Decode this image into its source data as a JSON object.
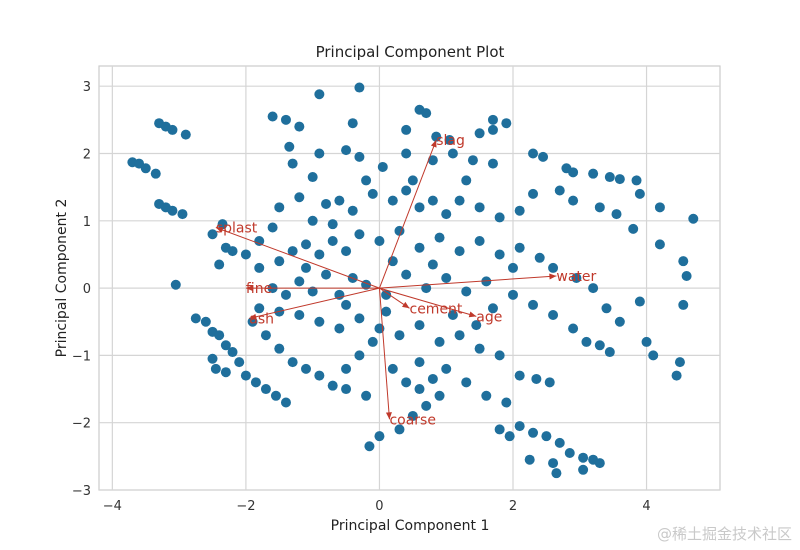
{
  "chart_data": {
    "type": "scatter",
    "title": "Principal Component Plot",
    "xlabel": "Principal Component 1",
    "ylabel": "Principal Component 2",
    "xlim": [
      -4.2,
      5.1
    ],
    "ylim": [
      -3,
      3.3
    ],
    "xticks": [
      -4,
      -2,
      0,
      2,
      4
    ],
    "xtick_labels": [
      "−4",
      "−2",
      "0",
      "2",
      "4"
    ],
    "yticks": [
      -3,
      -2,
      -1,
      0,
      1,
      2,
      3
    ],
    "ytick_labels": [
      "−3",
      "−2",
      "−1",
      "0",
      "1",
      "2",
      "3"
    ],
    "grid": true,
    "point_color": "#1f6f9c",
    "arrow_color": "#c0392b",
    "series": [
      {
        "points": [
          [
            -3.7,
            1.87
          ],
          [
            -3.6,
            1.85
          ],
          [
            -3.5,
            1.78
          ],
          [
            -3.35,
            1.7
          ],
          [
            -3.3,
            2.45
          ],
          [
            -3.2,
            2.4
          ],
          [
            -3.1,
            2.35
          ],
          [
            -2.9,
            2.28
          ],
          [
            -3.3,
            1.25
          ],
          [
            -3.2,
            1.2
          ],
          [
            -3.1,
            1.15
          ],
          [
            -2.95,
            1.1
          ],
          [
            -3.05,
            0.05
          ],
          [
            -1.35,
            2.1
          ],
          [
            -0.9,
            2.0
          ],
          [
            -0.5,
            2.05
          ],
          [
            -0.3,
            1.95
          ],
          [
            0.05,
            1.8
          ],
          [
            0.4,
            2.0
          ],
          [
            0.8,
            1.9
          ],
          [
            1.1,
            2.0
          ],
          [
            1.4,
            1.9
          ],
          [
            1.7,
            1.85
          ],
          [
            -0.9,
            2.88
          ],
          [
            -0.3,
            2.98
          ],
          [
            0.6,
            2.65
          ],
          [
            0.7,
            2.6
          ],
          [
            1.7,
            2.5
          ],
          [
            1.9,
            2.45
          ],
          [
            -1.6,
            2.55
          ],
          [
            -1.4,
            2.5
          ],
          [
            -1.2,
            2.4
          ],
          [
            -0.4,
            2.45
          ],
          [
            0.4,
            2.35
          ],
          [
            0.85,
            2.25
          ],
          [
            1.05,
            2.2
          ],
          [
            1.5,
            2.3
          ],
          [
            1.7,
            2.35
          ],
          [
            2.3,
            2.0
          ],
          [
            2.45,
            1.95
          ],
          [
            2.8,
            1.78
          ],
          [
            2.9,
            1.72
          ],
          [
            3.2,
            1.7
          ],
          [
            3.45,
            1.65
          ],
          [
            3.6,
            1.62
          ],
          [
            3.85,
            1.6
          ],
          [
            3.9,
            1.4
          ],
          [
            4.2,
            1.2
          ],
          [
            4.7,
            1.03
          ],
          [
            2.3,
            1.4
          ],
          [
            2.7,
            1.45
          ],
          [
            2.9,
            1.3
          ],
          [
            3.3,
            1.2
          ],
          [
            3.55,
            1.1
          ],
          [
            3.8,
            0.88
          ],
          [
            4.2,
            0.65
          ],
          [
            4.55,
            0.4
          ],
          [
            4.6,
            0.18
          ],
          [
            -2.5,
            0.8
          ],
          [
            -2.35,
            0.95
          ],
          [
            -2.3,
            0.6
          ],
          [
            -2.2,
            0.55
          ],
          [
            -2.4,
            0.35
          ],
          [
            -2.0,
            0.5
          ],
          [
            -1.8,
            0.7
          ],
          [
            -1.6,
            0.9
          ],
          [
            -1.5,
            1.2
          ],
          [
            -1.2,
            1.35
          ],
          [
            -1.0,
            1.0
          ],
          [
            -0.8,
            1.25
          ],
          [
            -0.6,
            1.3
          ],
          [
            -0.4,
            1.15
          ],
          [
            -0.1,
            1.4
          ],
          [
            0.2,
            1.3
          ],
          [
            0.4,
            1.45
          ],
          [
            0.6,
            1.2
          ],
          [
            0.8,
            1.3
          ],
          [
            1.0,
            1.1
          ],
          [
            1.2,
            1.3
          ],
          [
            1.5,
            1.2
          ],
          [
            1.8,
            1.05
          ],
          [
            2.1,
            1.15
          ],
          [
            -1.8,
            0.3
          ],
          [
            -1.5,
            0.4
          ],
          [
            -1.3,
            0.55
          ],
          [
            -1.1,
            0.65
          ],
          [
            -0.9,
            0.5
          ],
          [
            -0.7,
            0.7
          ],
          [
            -0.5,
            0.55
          ],
          [
            -0.3,
            0.8
          ],
          [
            0.0,
            0.7
          ],
          [
            0.3,
            0.85
          ],
          [
            0.6,
            0.6
          ],
          [
            0.9,
            0.75
          ],
          [
            1.2,
            0.55
          ],
          [
            1.5,
            0.7
          ],
          [
            1.8,
            0.5
          ],
          [
            2.1,
            0.6
          ],
          [
            2.4,
            0.45
          ],
          [
            2.6,
            0.3
          ],
          [
            2.95,
            0.15
          ],
          [
            3.2,
            0.0
          ],
          [
            3.4,
            -0.3
          ],
          [
            3.6,
            -0.5
          ],
          [
            3.9,
            -0.2
          ],
          [
            4.0,
            -0.8
          ],
          [
            4.1,
            -1.0
          ],
          [
            4.5,
            -1.1
          ],
          [
            4.45,
            -1.3
          ],
          [
            4.55,
            -0.25
          ],
          [
            -1.6,
            0.0
          ],
          [
            -1.4,
            -0.1
          ],
          [
            -1.2,
            0.1
          ],
          [
            -1.0,
            -0.05
          ],
          [
            -0.8,
            0.2
          ],
          [
            -0.6,
            -0.1
          ],
          [
            -0.4,
            0.15
          ],
          [
            -0.2,
            0.05
          ],
          [
            0.1,
            -0.1
          ],
          [
            0.4,
            0.2
          ],
          [
            0.7,
            0.0
          ],
          [
            1.0,
            0.15
          ],
          [
            1.3,
            -0.05
          ],
          [
            1.6,
            0.1
          ],
          [
            2.0,
            -0.1
          ],
          [
            2.3,
            -0.25
          ],
          [
            2.6,
            -0.4
          ],
          [
            2.9,
            -0.6
          ],
          [
            3.1,
            -0.8
          ],
          [
            3.3,
            -0.85
          ],
          [
            3.45,
            -0.95
          ],
          [
            -2.75,
            -0.45
          ],
          [
            -2.6,
            -0.5
          ],
          [
            -2.5,
            -0.65
          ],
          [
            -2.4,
            -0.7
          ],
          [
            -2.3,
            -0.85
          ],
          [
            -2.2,
            -0.95
          ],
          [
            -2.5,
            -1.05
          ],
          [
            -2.45,
            -1.2
          ],
          [
            -2.3,
            -1.25
          ],
          [
            -2.1,
            -1.1
          ],
          [
            -2.0,
            -1.3
          ],
          [
            -1.85,
            -1.4
          ],
          [
            -1.7,
            -1.5
          ],
          [
            -1.55,
            -1.6
          ],
          [
            -1.4,
            -1.7
          ],
          [
            -1.9,
            -0.5
          ],
          [
            -1.7,
            -0.7
          ],
          [
            -1.5,
            -0.9
          ],
          [
            -1.3,
            -1.1
          ],
          [
            -1.1,
            -1.2
          ],
          [
            -0.9,
            -1.3
          ],
          [
            -0.7,
            -1.45
          ],
          [
            -0.5,
            -1.2
          ],
          [
            -0.3,
            -1.0
          ],
          [
            -0.1,
            -0.8
          ],
          [
            -1.8,
            -0.3
          ],
          [
            -1.5,
            -0.35
          ],
          [
            -1.2,
            -0.4
          ],
          [
            -0.9,
            -0.5
          ],
          [
            -0.6,
            -0.6
          ],
          [
            -0.3,
            -0.45
          ],
          [
            0.0,
            -0.6
          ],
          [
            0.3,
            -0.7
          ],
          [
            0.6,
            -0.55
          ],
          [
            0.9,
            -0.8
          ],
          [
            1.2,
            -0.7
          ],
          [
            1.5,
            -0.9
          ],
          [
            1.8,
            -1.0
          ],
          [
            2.1,
            -1.3
          ],
          [
            2.35,
            -1.35
          ],
          [
            2.55,
            -1.4
          ],
          [
            0.2,
            -1.2
          ],
          [
            0.4,
            -1.4
          ],
          [
            0.6,
            -1.5
          ],
          [
            0.8,
            -1.35
          ],
          [
            0.9,
            -1.6
          ],
          [
            0.7,
            -1.75
          ],
          [
            0.5,
            -1.9
          ],
          [
            0.3,
            -2.1
          ],
          [
            0.0,
            -2.2
          ],
          [
            -0.15,
            -2.35
          ],
          [
            0.6,
            -1.1
          ],
          [
            1.0,
            -1.2
          ],
          [
            1.3,
            -1.4
          ],
          [
            1.6,
            -1.6
          ],
          [
            1.9,
            -1.7
          ],
          [
            1.8,
            -2.1
          ],
          [
            1.95,
            -2.2
          ],
          [
            2.1,
            -2.05
          ],
          [
            2.3,
            -2.15
          ],
          [
            2.5,
            -2.2
          ],
          [
            2.7,
            -2.3
          ],
          [
            2.85,
            -2.45
          ],
          [
            3.05,
            -2.52
          ],
          [
            3.2,
            -2.55
          ],
          [
            2.25,
            -2.55
          ],
          [
            2.6,
            -2.6
          ],
          [
            2.65,
            -2.75
          ],
          [
            3.05,
            -2.7
          ],
          [
            3.3,
            -2.6
          ],
          [
            -0.7,
            0.95
          ],
          [
            -0.2,
            1.6
          ],
          [
            0.5,
            1.6
          ],
          [
            1.3,
            1.6
          ],
          [
            -1.0,
            1.65
          ],
          [
            -1.3,
            1.85
          ],
          [
            -1.1,
            0.3
          ],
          [
            0.2,
            0.4
          ],
          [
            0.8,
            0.35
          ],
          [
            -0.2,
            -1.6
          ],
          [
            -0.5,
            -1.5
          ],
          [
            1.1,
            -0.4
          ],
          [
            1.45,
            -0.55
          ],
          [
            1.7,
            -0.3
          ],
          [
            2.0,
            0.3
          ],
          [
            0.1,
            -0.35
          ],
          [
            -0.5,
            -0.25
          ]
        ]
      }
    ],
    "vectors": [
      {
        "label": "slag",
        "x": 0.85,
        "y": 2.2
      },
      {
        "label": "splast",
        "x": -2.45,
        "y": 0.9
      },
      {
        "label": "water",
        "x": 2.65,
        "y": 0.18
      },
      {
        "label": "fine",
        "x": -2.0,
        "y": 0.0
      },
      {
        "label": "ash",
        "x": -1.95,
        "y": -0.45
      },
      {
        "label": "cement",
        "x": 0.45,
        "y": -0.3
      },
      {
        "label": "age",
        "x": 1.45,
        "y": -0.42
      },
      {
        "label": "coarse",
        "x": 0.15,
        "y": -1.95
      }
    ]
  },
  "watermark": "@稀土掘金技术社区"
}
